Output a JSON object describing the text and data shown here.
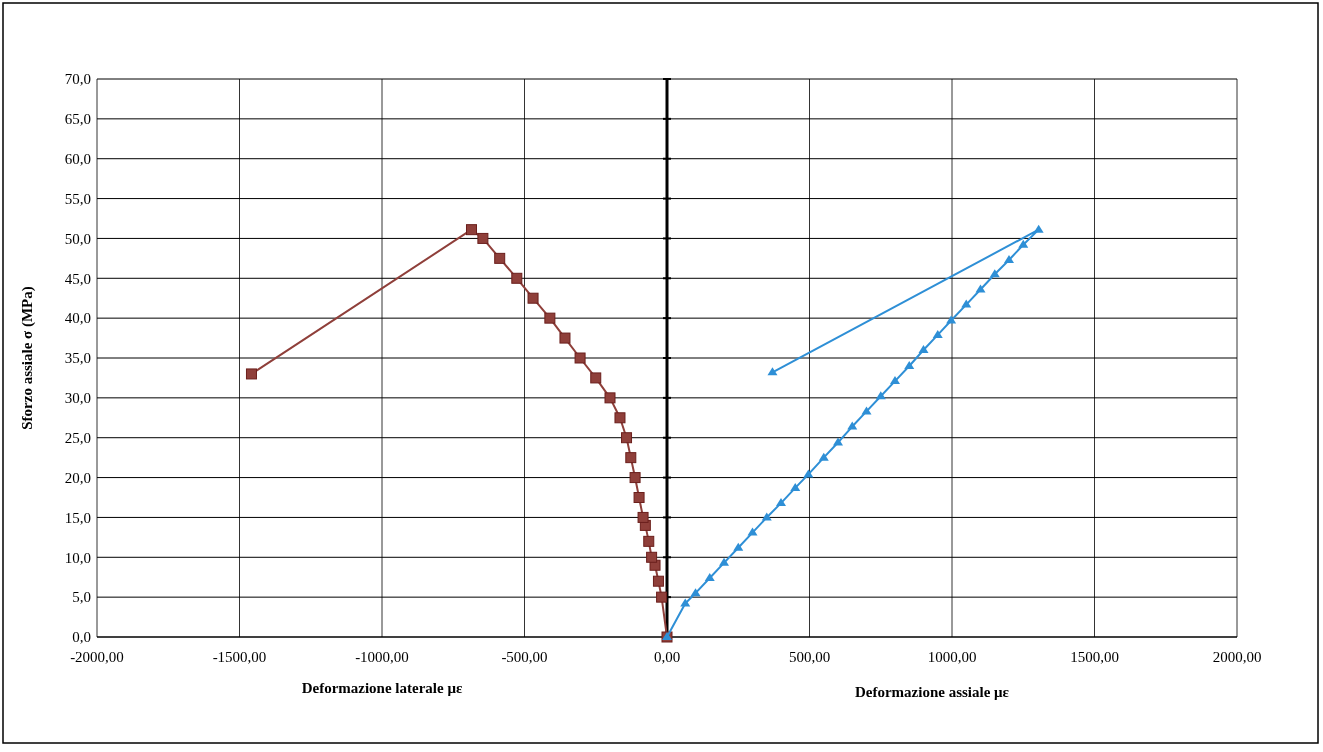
{
  "chart_data": {
    "type": "line",
    "ylabel": "Sforzo assiale σ (MPa)",
    "xlabel": "Deformazione laterale με",
    "annotations": [
      "Deformazione assiale με"
    ],
    "xlim": [
      -2000,
      2000
    ],
    "xticks": [
      {
        "value": -2000,
        "label": "-2000,00"
      },
      {
        "value": -1500,
        "label": "-1500,00"
      },
      {
        "value": -1000,
        "label": "-1000,00"
      },
      {
        "value": -500,
        "label": "-500,00"
      },
      {
        "value": 0,
        "label": "0,00"
      },
      {
        "value": 500,
        "label": "500,00"
      },
      {
        "value": 1000,
        "label": "1000,00"
      },
      {
        "value": 1500,
        "label": "1500,00"
      },
      {
        "value": 2000,
        "label": "2000,00"
      }
    ],
    "ylim": [
      0,
      70
    ],
    "yticks": [
      {
        "value": 0,
        "label": "0,0"
      },
      {
        "value": 5,
        "label": "5,0"
      },
      {
        "value": 10,
        "label": "10,0"
      },
      {
        "value": 15,
        "label": "15,0"
      },
      {
        "value": 20,
        "label": "20,0"
      },
      {
        "value": 25,
        "label": "25,0"
      },
      {
        "value": 30,
        "label": "30,0"
      },
      {
        "value": 35,
        "label": "35,0"
      },
      {
        "value": 40,
        "label": "40,0"
      },
      {
        "value": 45,
        "label": "45,0"
      },
      {
        "value": 50,
        "label": "50,0"
      },
      {
        "value": 55,
        "label": "55,0"
      },
      {
        "value": 60,
        "label": "60,0"
      },
      {
        "value": 65,
        "label": "65,0"
      },
      {
        "value": 70,
        "label": "70,0"
      }
    ],
    "grid": true,
    "line_style": "solid",
    "series": [
      {
        "color": "#8f3f3a",
        "marker": "square",
        "x": [
          0,
          -19,
          -30,
          -42,
          -54,
          -64,
          -76,
          -84,
          -98,
          -112,
          -127,
          -142,
          -165,
          -200,
          -250,
          -305,
          -358,
          -411,
          -470,
          -527,
          -587,
          -646,
          -686,
          -1458
        ],
        "values": [
          0,
          5,
          7,
          9,
          10,
          12,
          14,
          15,
          17.5,
          20,
          22.5,
          25,
          27.5,
          30,
          32.5,
          35,
          37.5,
          40,
          42.5,
          45,
          47.5,
          50,
          51.1,
          33
        ]
      },
      {
        "color": "#2e8fd6",
        "marker": "triangle",
        "x": [
          0,
          64,
          100,
          150,
          200,
          250,
          300,
          350,
          400,
          450,
          496,
          550,
          600,
          650,
          700,
          750,
          800,
          850,
          900,
          950,
          997,
          1050,
          1100,
          1150,
          1200,
          1250,
          1304,
          370
        ],
        "values": [
          0,
          4.2,
          5.5,
          7.4,
          9.3,
          11.2,
          13.1,
          15,
          16.8,
          18.7,
          20.4,
          22.5,
          24.4,
          26.4,
          28.3,
          30.2,
          32.1,
          34,
          36,
          37.9,
          39.7,
          41.7,
          43.6,
          45.5,
          47.3,
          49.2,
          51.1,
          33.2
        ]
      }
    ]
  }
}
